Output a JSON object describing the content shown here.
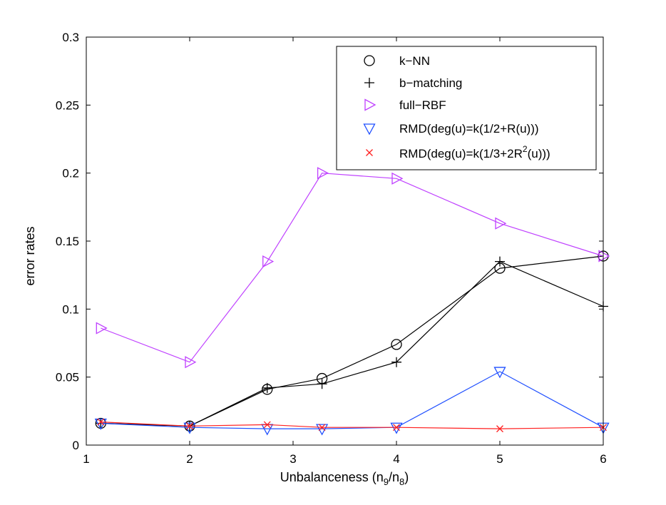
{
  "chart_data": {
    "type": "line",
    "title": "",
    "xlabel": "Unbalanceness (n",
    "xlabel_sub1": "9",
    "xlabel_mid": "/n",
    "xlabel_sub2": "8",
    "xlabel_end": ")",
    "ylabel": "error rates",
    "xlim": [
      1,
      6
    ],
    "ylim": [
      0,
      0.3
    ],
    "xticks": [
      1,
      2,
      3,
      4,
      5,
      6
    ],
    "yticks": [
      0,
      0.05,
      0.1,
      0.15,
      0.2,
      0.25,
      0.3
    ],
    "xtick_labels": [
      "1",
      "2",
      "3",
      "4",
      "5",
      "6"
    ],
    "ytick_labels": [
      "0",
      "0.05",
      "0.1",
      "0.15",
      "0.2",
      "0.25",
      "0.3"
    ],
    "grid": false,
    "legend_position": "top-right",
    "legend_labels": {
      "knn": "k−NN",
      "bmatch": "b−matching",
      "rbf": "full−RBF",
      "rmd1": "RMD(deg(u)=k(1/2+R(u)))",
      "rmd2_pre": "RMD(deg(u)=k(1/3+2R",
      "rmd2_sup": "2",
      "rmd2_post": "(u)))"
    },
    "series": [
      {
        "key": "knn",
        "color": "#000000",
        "marker": "circle",
        "x": [
          1.14,
          2,
          2.75,
          3.28,
          4,
          5,
          6
        ],
        "y": [
          0.016,
          0.014,
          0.041,
          0.049,
          0.074,
          0.13,
          0.139
        ]
      },
      {
        "key": "bmatch",
        "color": "#000000",
        "marker": "plus",
        "x": [
          1.14,
          2,
          2.75,
          3.28,
          4,
          5,
          6
        ],
        "y": [
          0.016,
          0.014,
          0.042,
          0.045,
          0.061,
          0.135,
          0.102
        ]
      },
      {
        "key": "rbf",
        "color": "#bf40ff",
        "marker": "triangle-right",
        "x": [
          1.14,
          2,
          2.75,
          3.28,
          4,
          5,
          6
        ],
        "y": [
          0.086,
          0.061,
          0.135,
          0.2,
          0.196,
          0.163,
          0.139
        ]
      },
      {
        "key": "rmd1",
        "color": "#1f4fff",
        "marker": "triangle-down",
        "x": [
          1.14,
          2,
          2.75,
          3.28,
          4,
          5,
          6
        ],
        "y": [
          0.016,
          0.013,
          0.012,
          0.012,
          0.013,
          0.054,
          0.013
        ]
      },
      {
        "key": "rmd2",
        "color": "#ff2020",
        "marker": "x",
        "x": [
          1.14,
          2,
          2.75,
          3.28,
          4,
          5,
          6
        ],
        "y": [
          0.017,
          0.014,
          0.015,
          0.013,
          0.013,
          0.012,
          0.013
        ]
      }
    ]
  }
}
